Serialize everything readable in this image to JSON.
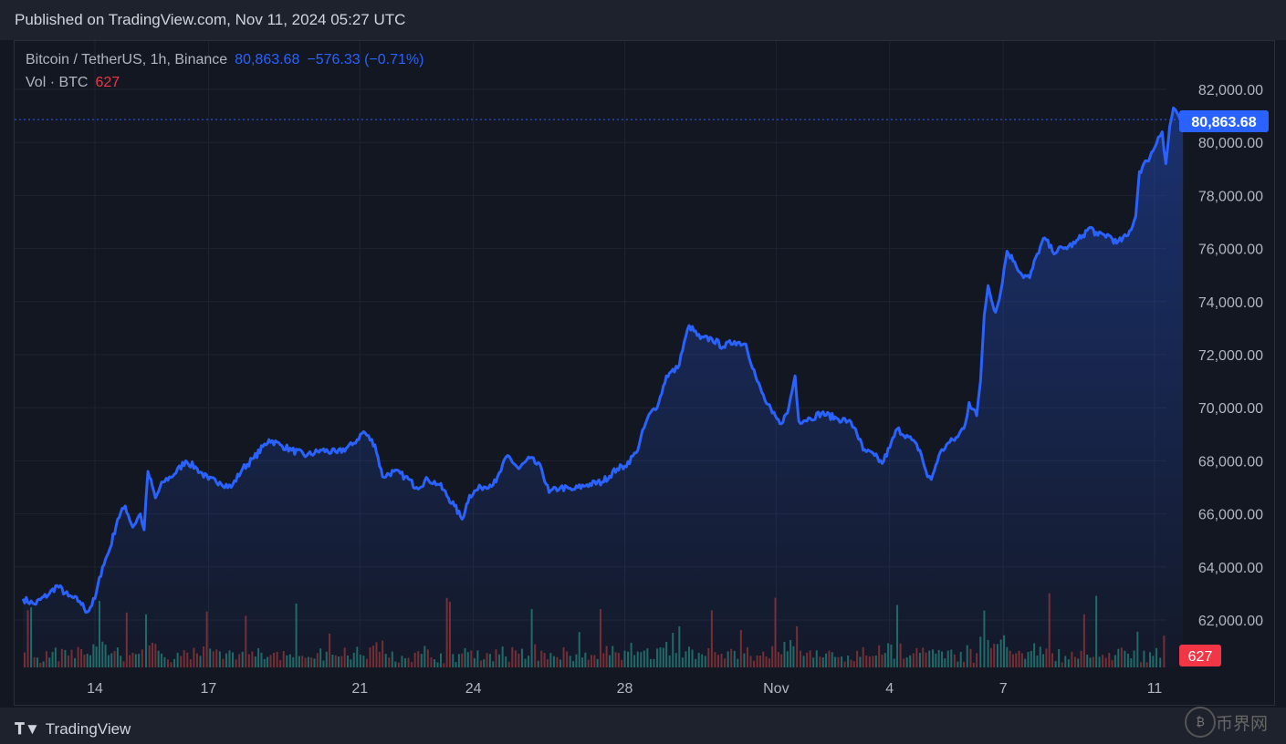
{
  "header": {
    "published": "Published on TradingView.com, Nov 11, 2024 05:27 UTC"
  },
  "legend": {
    "symbol": "Bitcoin / TetherUS, 1h, Binance",
    "last": "80,863.68",
    "change": "−576.33 (−0.71%)",
    "vol_label": "Vol · BTC",
    "vol_value": "627"
  },
  "footer": {
    "brand": "TradingView",
    "watermark": "币界网"
  },
  "colors": {
    "line": "#2962ff",
    "up": "#26a69a",
    "down": "#ef5350",
    "price_tag": "#2962ff",
    "vol_tag": "#f23645"
  },
  "chart_data": {
    "type": "area",
    "title": "Bitcoin / TetherUS, 1h, Binance",
    "x_ticks": [
      "14",
      "17",
      "21",
      "24",
      "28",
      "Nov",
      "4",
      "7",
      "11"
    ],
    "y_ticks": [
      "82,000.00",
      "80,000.00",
      "78,000.00",
      "76,000.00",
      "74,000.00",
      "72,000.00",
      "70,000.00",
      "68,000.00",
      "66,000.00",
      "64,000.00",
      "62,000.00"
    ],
    "ylim": [
      60800,
      83000
    ],
    "last_price_label": "80,863.68",
    "last_price": 80863.68,
    "volume_label": "627",
    "grid": true,
    "price_points": [
      [
        12.1,
        62800
      ],
      [
        12.4,
        62600
      ],
      [
        12.8,
        63000
      ],
      [
        13.0,
        63300
      ],
      [
        13.3,
        62900
      ],
      [
        13.6,
        62700
      ],
      [
        13.8,
        62300
      ],
      [
        14.0,
        62800
      ],
      [
        14.2,
        64000
      ],
      [
        14.4,
        64700
      ],
      [
        14.6,
        65800
      ],
      [
        14.8,
        66300
      ],
      [
        15.0,
        65500
      ],
      [
        15.2,
        66000
      ],
      [
        15.3,
        65400
      ],
      [
        15.4,
        67600
      ],
      [
        15.6,
        66600
      ],
      [
        15.8,
        67200
      ],
      [
        16.1,
        67500
      ],
      [
        16.4,
        68000
      ],
      [
        16.7,
        67700
      ],
      [
        17.0,
        67300
      ],
      [
        17.3,
        67200
      ],
      [
        17.6,
        67000
      ],
      [
        17.9,
        67700
      ],
      [
        18.2,
        68100
      ],
      [
        18.6,
        68800
      ],
      [
        18.9,
        68600
      ],
      [
        19.2,
        68400
      ],
      [
        19.6,
        68200
      ],
      [
        20.0,
        68400
      ],
      [
        20.4,
        68300
      ],
      [
        20.8,
        68600
      ],
      [
        21.1,
        69100
      ],
      [
        21.4,
        68600
      ],
      [
        21.6,
        67400
      ],
      [
        21.9,
        67600
      ],
      [
        22.2,
        67400
      ],
      [
        22.5,
        67000
      ],
      [
        22.8,
        67300
      ],
      [
        23.1,
        67100
      ],
      [
        23.5,
        66300
      ],
      [
        23.7,
        65800
      ],
      [
        23.9,
        66700
      ],
      [
        24.2,
        67000
      ],
      [
        24.6,
        67200
      ],
      [
        24.9,
        68200
      ],
      [
        25.2,
        67700
      ],
      [
        25.5,
        68100
      ],
      [
        25.8,
        67700
      ],
      [
        26.0,
        66800
      ],
      [
        26.3,
        67000
      ],
      [
        26.6,
        66900
      ],
      [
        27.0,
        67100
      ],
      [
        27.4,
        67200
      ],
      [
        27.8,
        67700
      ],
      [
        28.0,
        67800
      ],
      [
        28.3,
        68300
      ],
      [
        28.6,
        69600
      ],
      [
        28.9,
        70200
      ],
      [
        29.1,
        71200
      ],
      [
        29.4,
        71500
      ],
      [
        29.7,
        73100
      ],
      [
        30.0,
        72600
      ],
      [
        30.3,
        72600
      ],
      [
        30.6,
        72300
      ],
      [
        30.9,
        72500
      ],
      [
        31.2,
        72400
      ],
      [
        31.5,
        71000
      ],
      [
        31.7,
        70300
      ],
      [
        31.9,
        69800
      ],
      [
        32.1,
        69400
      ],
      [
        32.3,
        69800
      ],
      [
        32.5,
        71200
      ],
      [
        32.6,
        69500
      ],
      [
        32.9,
        69600
      ],
      [
        33.2,
        69800
      ],
      [
        33.6,
        69600
      ],
      [
        33.9,
        69500
      ],
      [
        34.1,
        69200
      ],
      [
        34.3,
        68400
      ],
      [
        34.6,
        68200
      ],
      [
        34.8,
        67900
      ],
      [
        35.0,
        68500
      ],
      [
        35.2,
        69200
      ],
      [
        35.5,
        68900
      ],
      [
        35.8,
        68400
      ],
      [
        36.0,
        67400
      ],
      [
        36.1,
        67300
      ],
      [
        36.3,
        68200
      ],
      [
        36.5,
        68600
      ],
      [
        36.8,
        68900
      ],
      [
        37.0,
        69400
      ],
      [
        37.1,
        70200
      ],
      [
        37.3,
        69700
      ],
      [
        37.4,
        71000
      ],
      [
        37.5,
        73500
      ],
      [
        37.6,
        74600
      ],
      [
        37.8,
        73600
      ],
      [
        37.9,
        74100
      ],
      [
        38.1,
        75900
      ],
      [
        38.3,
        75500
      ],
      [
        38.5,
        75000
      ],
      [
        38.7,
        74900
      ],
      [
        38.9,
        75800
      ],
      [
        39.1,
        76400
      ],
      [
        39.3,
        75900
      ],
      [
        39.6,
        76000
      ],
      [
        39.9,
        76200
      ],
      [
        40.1,
        76500
      ],
      [
        40.3,
        76800
      ],
      [
        40.5,
        76500
      ],
      [
        40.8,
        76500
      ],
      [
        41.0,
        76200
      ],
      [
        41.3,
        76500
      ],
      [
        41.5,
        77200
      ],
      [
        41.6,
        78900
      ],
      [
        41.8,
        79300
      ],
      [
        42.0,
        79800
      ],
      [
        42.1,
        80200
      ],
      [
        42.2,
        80400
      ],
      [
        42.3,
        79200
      ],
      [
        42.4,
        80600
      ],
      [
        42.5,
        81300
      ],
      [
        42.6,
        81100
      ],
      [
        42.7,
        80800
      ],
      [
        42.75,
        80864
      ]
    ]
  }
}
